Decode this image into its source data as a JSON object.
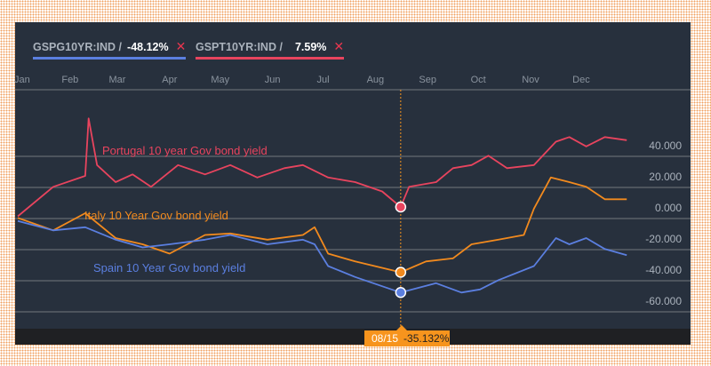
{
  "legend": [
    {
      "ticker": "GSPG10YR:IND /",
      "change": "-48.12%",
      "color": "#5b7fe0",
      "remove": "✕"
    },
    {
      "ticker": "GSPT10YR:IND /",
      "change": "7.59%",
      "color": "#e8445e",
      "remove": "✕"
    }
  ],
  "tooltip": {
    "date": "08/15",
    "value": "-35.132%"
  },
  "chart_data": {
    "type": "line",
    "x_unit": "day of year",
    "months": [
      "Jan",
      "Feb",
      "Mar",
      "Apr",
      "May",
      "Jun",
      "Jul",
      "Aug",
      "Sep",
      "Oct",
      "Nov",
      "Dec"
    ],
    "month_days": [
      0,
      31,
      59,
      90,
      120,
      151,
      181,
      212,
      243,
      273,
      304,
      334
    ],
    "yticks": [
      40,
      20,
      0,
      -20,
      -40,
      -60
    ],
    "ytick_labels": [
      "40.000",
      "20.000",
      "0.000",
      "-20.000",
      "-40.000",
      "-60.000"
    ],
    "ylim": [
      -70,
      60
    ],
    "crosshair_day": 227,
    "series": [
      {
        "name": "Portugal 10 year Gov bond yield",
        "color": "#e8445e",
        "x": [
          0,
          21,
          40,
          42,
          47,
          58,
          68,
          79,
          95,
          111,
          126,
          142,
          158,
          169,
          184,
          200,
          216,
          227,
          232,
          248,
          258,
          269,
          279,
          290,
          306,
          319,
          327,
          337,
          348,
          361
        ],
        "y": [
          -6,
          13,
          20,
          57,
          27,
          16,
          21,
          13,
          27,
          21,
          27,
          19,
          25,
          27,
          19,
          16,
          10,
          0,
          13,
          16,
          25,
          27,
          33,
          25,
          27,
          42,
          45,
          39,
          45,
          43
        ]
      },
      {
        "name": "Italy 10 Year Gov bond yield",
        "color": "#f28a1e",
        "x": [
          0,
          21,
          40,
          58,
          74,
          90,
          111,
          126,
          148,
          169,
          176,
          184,
          200,
          227,
          242,
          258,
          269,
          285,
          300,
          306,
          316,
          327,
          337,
          348,
          361
        ],
        "y": [
          -7,
          -15,
          -4,
          -20,
          -24,
          -30,
          -18,
          -17,
          -21,
          -18,
          -13,
          -30,
          -35,
          -42,
          -35,
          -33,
          -24,
          -21,
          -18,
          -1,
          19,
          16,
          13,
          5,
          5
        ]
      },
      {
        "name": "Spain 10 Year Gov bond yield",
        "color": "#5b7fe0",
        "x": [
          0,
          21,
          40,
          58,
          74,
          90,
          111,
          126,
          148,
          169,
          176,
          184,
          200,
          227,
          248,
          263,
          274,
          285,
          306,
          319,
          327,
          337,
          348,
          361
        ],
        "y": [
          -9,
          -15,
          -13,
          -21,
          -26,
          -24,
          -21,
          -18,
          -24,
          -21,
          -24,
          -38,
          -45,
          -55,
          -49,
          -55,
          -53,
          -47,
          -38,
          -20,
          -24,
          -20,
          -27,
          -31
        ]
      }
    ]
  }
}
